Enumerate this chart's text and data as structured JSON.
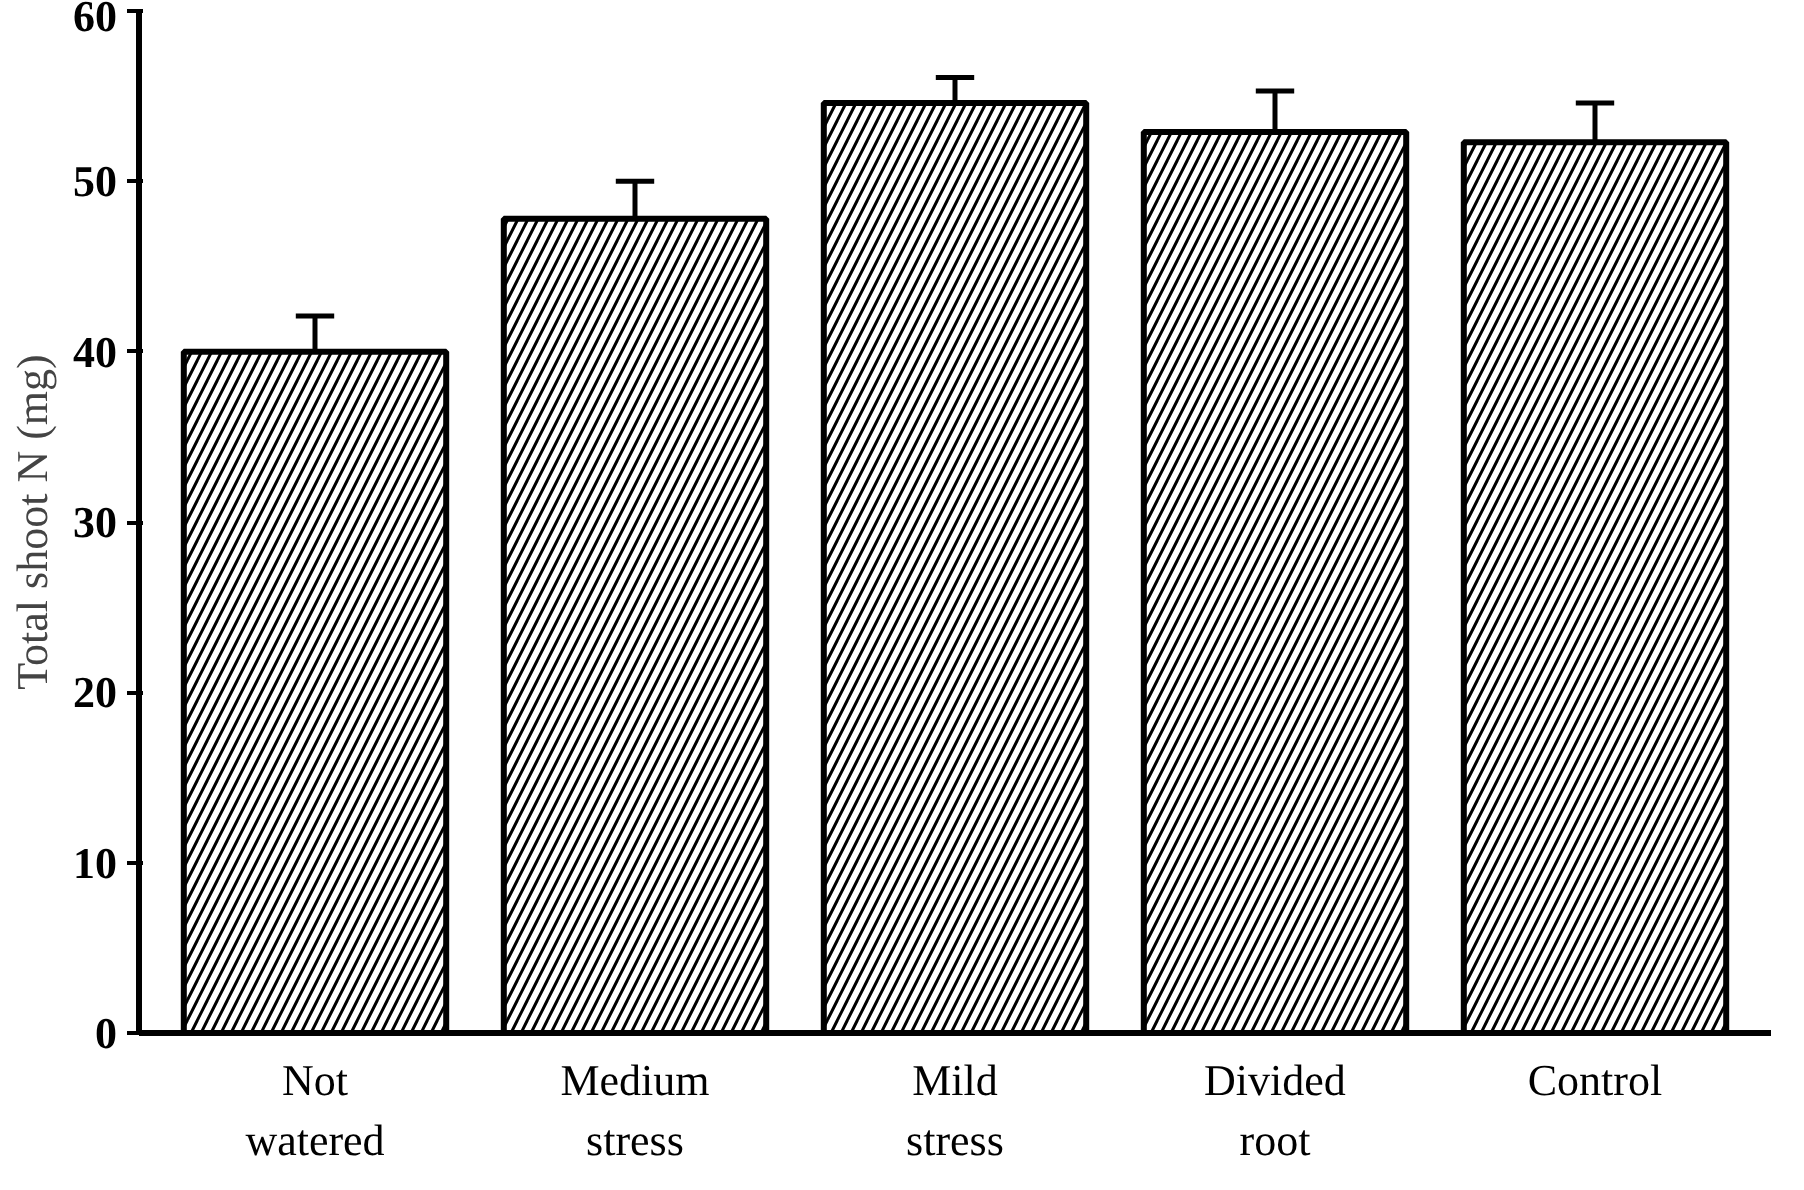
{
  "chart_data": {
    "type": "bar",
    "ylabel": "Total shoot N (mg)",
    "categories": [
      "Not watered",
      "Medium stress",
      "Mild stress",
      "Divided root",
      "Control"
    ],
    "values": [
      40.0,
      47.8,
      54.6,
      52.9,
      52.3
    ],
    "errors": [
      [
        40.0,
        42.1
      ],
      [
        47.8,
        50.0
      ],
      [
        54.6,
        56.1
      ],
      [
        52.9,
        55.3
      ],
      [
        52.3,
        54.6
      ]
    ],
    "color": "#ffffff",
    "ylim": [
      0,
      60
    ],
    "yticks": [
      0,
      10,
      20,
      30,
      40,
      50,
      60
    ],
    "grid": false
  }
}
